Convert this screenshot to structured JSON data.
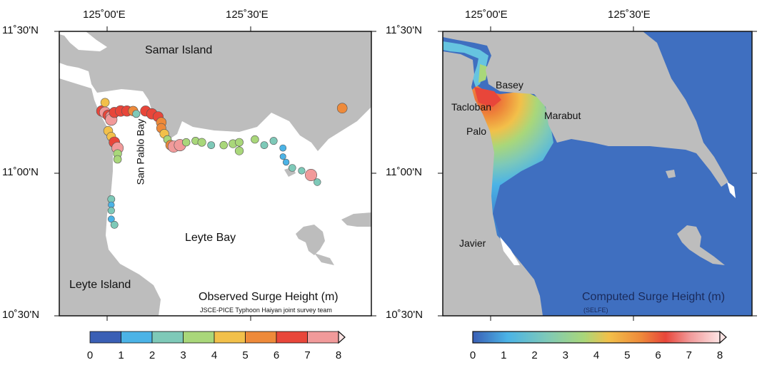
{
  "left_panel": {
    "lon_ticks": [
      "125˚00'E",
      "125˚30'E"
    ],
    "lat_ticks": [
      "11˚30'N",
      "11˚00'N",
      "10˚30'N"
    ],
    "labels": {
      "samar": "Samar Island",
      "san_pablo": "San Pablo Bay",
      "leyte_bay": "Leyte Bay",
      "leyte_island": "Leyte Island"
    },
    "title": "Observed Surge Height (m)",
    "credit": "JSCE-PICE Typhoon Haiyan joint survey team",
    "colorbar_ticks": [
      "0",
      "1",
      "2",
      "3",
      "4",
      "5",
      "6",
      "7",
      "8"
    ]
  },
  "right_panel": {
    "lon_ticks": [
      "125˚00'E",
      "125˚30'E"
    ],
    "lat_ticks": [
      "11˚30'N",
      "11˚00'N",
      "10˚30'N"
    ],
    "labels": {
      "basey": "Basey",
      "tacloban": "Tacloban",
      "marabut": "Marabut",
      "palo": "Palo",
      "javier": "Javier"
    },
    "title": "Computed Surge Height (m)",
    "credit": "(SELFE)",
    "colorbar_ticks": [
      "0",
      "1",
      "2",
      "3",
      "4",
      "5",
      "6",
      "7",
      "8"
    ]
  },
  "colors": {
    "land": "#bdbdbd",
    "sea_observed": "#ffffff",
    "sea_computed": "#3f6fc0",
    "scale": [
      "#3a5fb5",
      "#4bb3e6",
      "#7ec9b8",
      "#a9d77a",
      "#f2c04a",
      "#ee8a3a",
      "#e8463a",
      "#f19a9a",
      "#fde4e4"
    ]
  },
  "observations": [
    {
      "lat": 11.22,
      "lon": 124.97,
      "h": 6.9
    },
    {
      "lat": 11.215,
      "lon": 124.98,
      "h": 7.2
    },
    {
      "lat": 11.205,
      "lon": 124.99,
      "h": 6.6
    },
    {
      "lat": 11.2,
      "lon": 125.0,
      "h": 7.5
    },
    {
      "lat": 11.19,
      "lon": 125.0,
      "h": 7.8
    },
    {
      "lat": 11.215,
      "lon": 125.01,
      "h": 6.3
    },
    {
      "lat": 11.22,
      "lon": 125.03,
      "h": 6.8
    },
    {
      "lat": 11.22,
      "lon": 125.05,
      "h": 6.5
    },
    {
      "lat": 11.22,
      "lon": 125.07,
      "h": 5.5
    },
    {
      "lat": 11.25,
      "lon": 124.98,
      "h": 4.2
    },
    {
      "lat": 11.21,
      "lon": 125.08,
      "h": 2.8
    },
    {
      "lat": 11.22,
      "lon": 125.11,
      "h": 6.4
    },
    {
      "lat": 11.21,
      "lon": 125.13,
      "h": 6.6
    },
    {
      "lat": 11.2,
      "lon": 125.15,
      "h": 6.1
    },
    {
      "lat": 11.18,
      "lon": 125.16,
      "h": 5.8
    },
    {
      "lat": 11.16,
      "lon": 125.16,
      "h": 5.2
    },
    {
      "lat": 11.14,
      "lon": 125.17,
      "h": 4.6
    },
    {
      "lat": 11.12,
      "lon": 125.18,
      "h": 3.4
    },
    {
      "lat": 11.1,
      "lon": 125.19,
      "h": 5.6
    },
    {
      "lat": 11.095,
      "lon": 125.2,
      "h": 7.6
    },
    {
      "lat": 11.1,
      "lon": 125.22,
      "h": 7.9
    },
    {
      "lat": 11.11,
      "lon": 125.24,
      "h": 3.2
    },
    {
      "lat": 11.115,
      "lon": 125.27,
      "h": 3.0
    },
    {
      "lat": 11.11,
      "lon": 125.29,
      "h": 3.6
    },
    {
      "lat": 11.1,
      "lon": 125.32,
      "h": 2.6
    },
    {
      "lat": 11.1,
      "lon": 125.36,
      "h": 3.2
    },
    {
      "lat": 11.105,
      "lon": 125.39,
      "h": 3.8
    },
    {
      "lat": 11.11,
      "lon": 125.41,
      "h": 3.5
    },
    {
      "lat": 11.08,
      "lon": 125.41,
      "h": 3.9
    },
    {
      "lat": 11.12,
      "lon": 125.46,
      "h": 3.1
    },
    {
      "lat": 11.1,
      "lon": 125.49,
      "h": 2.7
    },
    {
      "lat": 11.115,
      "lon": 125.52,
      "h": 2.9
    },
    {
      "lat": 11.09,
      "lon": 125.55,
      "h": 1.8
    },
    {
      "lat": 11.06,
      "lon": 125.55,
      "h": 1.2
    },
    {
      "lat": 11.04,
      "lon": 125.56,
      "h": 1.5
    },
    {
      "lat": 11.02,
      "lon": 125.58,
      "h": 2.5
    },
    {
      "lat": 11.01,
      "lon": 125.61,
      "h": 2.2
    },
    {
      "lat": 10.995,
      "lon": 125.64,
      "h": 7.9
    },
    {
      "lat": 10.97,
      "lon": 125.66,
      "h": 2.4
    },
    {
      "lat": 11.23,
      "lon": 125.74,
      "h": 5.8
    },
    {
      "lat": 11.15,
      "lon": 124.99,
      "h": 4.8
    },
    {
      "lat": 11.13,
      "lon": 125.0,
      "h": 4.5
    },
    {
      "lat": 11.11,
      "lon": 125.01,
      "h": 6.9
    },
    {
      "lat": 11.09,
      "lon": 125.02,
      "h": 7.7
    },
    {
      "lat": 11.07,
      "lon": 125.02,
      "h": 3.8
    },
    {
      "lat": 11.05,
      "lon": 125.02,
      "h": 3.4
    },
    {
      "lat": 10.91,
      "lon": 125.0,
      "h": 2.6
    },
    {
      "lat": 10.89,
      "lon": 125.0,
      "h": 1.5
    },
    {
      "lat": 10.87,
      "lon": 125.0,
      "h": 2.1
    },
    {
      "lat": 10.84,
      "lon": 125.0,
      "h": 1.8
    },
    {
      "lat": 10.82,
      "lon": 125.01,
      "h": 2.6
    }
  ]
}
